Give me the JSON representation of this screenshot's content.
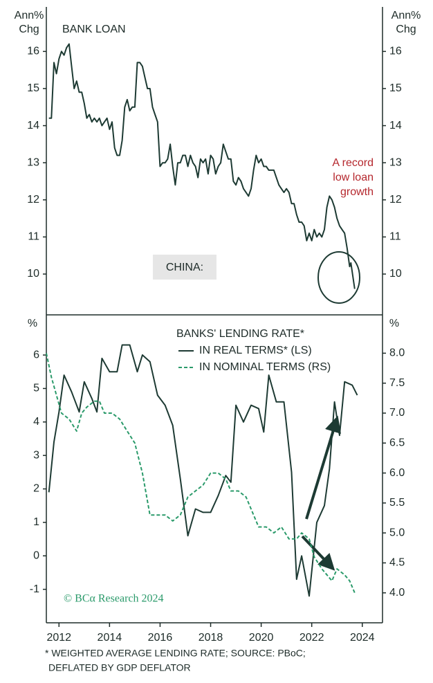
{
  "chart_data": [
    {
      "type": "line",
      "title": "BANK LOAN",
      "label": "CHINA:",
      "ylabel": [
        "Ann%",
        "Chg"
      ],
      "y2label": [
        "Ann%",
        "Chg"
      ],
      "annotation": [
        "A record",
        "low loan",
        "growth"
      ],
      "xlim": [
        2011.5,
        2024.8
      ],
      "ylim": [
        8.9,
        17.2
      ],
      "yticks": [
        10,
        11,
        12,
        13,
        14,
        15,
        16
      ],
      "y2lim": [
        8.9,
        17.2
      ],
      "y2ticks": [
        10,
        11,
        12,
        13,
        14,
        15,
        16
      ],
      "series": [
        {
          "color": "#1d3a33",
          "x": [
            2011.6,
            2011.7,
            2011.8,
            2011.9,
            2012.0,
            2012.1,
            2012.2,
            2012.3,
            2012.4,
            2012.5,
            2012.6,
            2012.7,
            2012.8,
            2012.9,
            2013.0,
            2013.1,
            2013.2,
            2013.3,
            2013.4,
            2013.5,
            2013.6,
            2013.7,
            2013.8,
            2013.9,
            2014.0,
            2014.1,
            2014.2,
            2014.3,
            2014.4,
            2014.5,
            2014.6,
            2014.7,
            2014.8,
            2014.9,
            2015.0,
            2015.1,
            2015.2,
            2015.3,
            2015.4,
            2015.5,
            2015.6,
            2015.7,
            2015.8,
            2015.9,
            2016.0,
            2016.1,
            2016.2,
            2016.3,
            2016.4,
            2016.5,
            2016.6,
            2016.7,
            2016.8,
            2016.9,
            2017.0,
            2017.1,
            2017.2,
            2017.3,
            2017.4,
            2017.5,
            2017.6,
            2017.7,
            2017.8,
            2017.9,
            2018.0,
            2018.1,
            2018.2,
            2018.3,
            2018.4,
            2018.5,
            2018.6,
            2018.7,
            2018.8,
            2018.9,
            2019.0,
            2019.1,
            2019.2,
            2019.3,
            2019.4,
            2019.5,
            2019.6,
            2019.7,
            2019.8,
            2019.9,
            2020.0,
            2020.1,
            2020.2,
            2020.3,
            2020.4,
            2020.5,
            2020.6,
            2020.7,
            2020.8,
            2020.9,
            2021.0,
            2021.1,
            2021.2,
            2021.3,
            2021.4,
            2021.5,
            2021.6,
            2021.7,
            2021.8,
            2021.9,
            2022.0,
            2022.1,
            2022.2,
            2022.3,
            2022.4,
            2022.5,
            2022.6,
            2022.7,
            2022.8,
            2022.9,
            2023.0,
            2023.1,
            2023.2,
            2023.3,
            2023.4,
            2023.5,
            2023.55,
            2023.7
          ],
          "values": [
            14.2,
            14.2,
            15.7,
            15.4,
            15.8,
            16.0,
            15.9,
            16.1,
            16.2,
            15.6,
            15.0,
            15.2,
            14.9,
            14.9,
            14.6,
            14.2,
            14.3,
            14.1,
            14.2,
            14.1,
            14.2,
            14.0,
            14.1,
            14.2,
            13.9,
            14.1,
            13.4,
            13.2,
            13.2,
            13.6,
            14.5,
            14.7,
            14.4,
            14.5,
            14.5,
            15.7,
            15.7,
            15.6,
            15.3,
            15.0,
            15.0,
            14.5,
            14.3,
            14.1,
            12.9,
            13.0,
            13.0,
            13.1,
            13.5,
            12.9,
            12.4,
            13.0,
            13.0,
            13.2,
            13.2,
            12.9,
            13.2,
            13.0,
            12.9,
            12.6,
            13.1,
            13.0,
            13.1,
            12.7,
            13.2,
            13.1,
            12.7,
            12.9,
            13.0,
            13.5,
            13.3,
            13.1,
            13.1,
            12.5,
            12.4,
            12.6,
            12.5,
            12.3,
            12.2,
            12.1,
            12.3,
            12.8,
            13.2,
            13.0,
            13.1,
            12.9,
            12.9,
            12.8,
            12.8,
            12.8,
            12.6,
            12.4,
            12.3,
            12.2,
            12.3,
            12.2,
            11.9,
            11.9,
            11.6,
            11.4,
            11.4,
            11.3,
            10.9,
            11.1,
            10.9,
            11.2,
            11.0,
            11.1,
            11.0,
            11.2,
            11.8,
            12.1,
            12.0,
            11.8,
            11.5,
            11.3,
            11.2,
            11.1,
            10.7,
            10.2,
            10.3,
            9.6
          ]
        }
      ]
    },
    {
      "type": "line",
      "title": "BANKS' LENDING RATE*",
      "ylabel": [
        "%"
      ],
      "y2label": [
        "%"
      ],
      "watermark": "© BCα Research 2024",
      "xlim": [
        2011.5,
        2024.8
      ],
      "xticks": [
        2012,
        2014,
        2016,
        2018,
        2020,
        2022,
        2024
      ],
      "ylim": [
        -2,
        7.2
      ],
      "yticks": [
        -1,
        0,
        1,
        2,
        3,
        4,
        5,
        6
      ],
      "y2lim": [
        3.5,
        8.64
      ],
      "y2ticks": [
        {
          "value": 4,
          "label": "4.0"
        },
        4.5,
        {
          "value": 5,
          "label": "5.0"
        },
        5.5,
        {
          "value": 6,
          "label": "6.0"
        },
        6.5,
        {
          "value": 7,
          "label": "7.0"
        },
        7.5,
        {
          "value": 8,
          "label": "8.0"
        }
      ],
      "series": [
        {
          "name": "IN REAL TERMS* (LS)",
          "color": "#1d3a33",
          "x": [
            2011.6,
            2011.8,
            2012.0,
            2012.2,
            2012.5,
            2012.8,
            2013.0,
            2013.3,
            2013.5,
            2013.7,
            2014.0,
            2014.3,
            2014.5,
            2014.8,
            2015.1,
            2015.3,
            2015.6,
            2015.9,
            2016.2,
            2016.5,
            2016.8,
            2017.1,
            2017.4,
            2017.7,
            2018.0,
            2018.3,
            2018.6,
            2018.8,
            2019.0,
            2019.3,
            2019.6,
            2019.9,
            2020.1,
            2020.3,
            2020.6,
            2020.9,
            2021.2,
            2021.4,
            2021.6,
            2021.9,
            2022.2,
            2022.5,
            2022.7,
            2022.9,
            2023.1,
            2023.3,
            2023.6,
            2023.8
          ],
          "values": [
            1.9,
            3.4,
            4.3,
            5.4,
            4.9,
            4.3,
            5.2,
            4.7,
            4.3,
            5.9,
            5.5,
            5.5,
            6.3,
            6.3,
            5.5,
            6.0,
            5.8,
            4.8,
            4.5,
            3.9,
            2.3,
            0.6,
            1.4,
            1.3,
            1.3,
            1.8,
            2.4,
            2.2,
            4.5,
            4.0,
            4.5,
            4.4,
            3.7,
            5.4,
            4.6,
            4.6,
            2.5,
            -0.7,
            0.0,
            -1.2,
            1.0,
            1.5,
            2.6,
            4.6,
            3.6,
            5.2,
            5.1,
            4.8
          ]
        },
        {
          "name": "IN NOMINAL TERMS (RS)",
          "color": "#2a9a6a",
          "axis": "y2",
          "dashed": true,
          "x": [
            2011.5,
            2011.7,
            2011.9,
            2012.1,
            2012.4,
            2012.7,
            2012.9,
            2013.1,
            2013.4,
            2013.6,
            2013.8,
            2014.1,
            2014.4,
            2014.7,
            2015.0,
            2015.3,
            2015.6,
            2015.9,
            2016.2,
            2016.5,
            2016.8,
            2017.1,
            2017.4,
            2017.7,
            2018.0,
            2018.3,
            2018.6,
            2018.8,
            2019.1,
            2019.4,
            2019.7,
            2019.9,
            2020.2,
            2020.5,
            2020.8,
            2021.1,
            2021.4,
            2021.6,
            2021.9,
            2022.1,
            2022.4,
            2022.6,
            2022.8,
            2023.0,
            2023.3,
            2023.5,
            2023.7
          ],
          "values": [
            8.0,
            7.6,
            7.3,
            7.0,
            6.9,
            6.7,
            7.0,
            7.1,
            7.2,
            7.2,
            7.0,
            7.0,
            6.9,
            6.7,
            6.5,
            6.0,
            5.3,
            5.3,
            5.3,
            5.2,
            5.3,
            5.6,
            5.7,
            5.8,
            6.0,
            6.0,
            5.9,
            5.7,
            5.7,
            5.6,
            5.3,
            5.1,
            5.1,
            5.0,
            5.1,
            4.9,
            4.9,
            5.0,
            4.9,
            4.6,
            4.4,
            4.3,
            4.2,
            4.4,
            4.3,
            4.2,
            4.0
          ]
        }
      ]
    }
  ],
  "footnote": [
    "* WEIGHTED AVERAGE LENDING RATE; SOURCE: PBoC;",
    "DEFLATED BY GDP DEFLATOR"
  ]
}
